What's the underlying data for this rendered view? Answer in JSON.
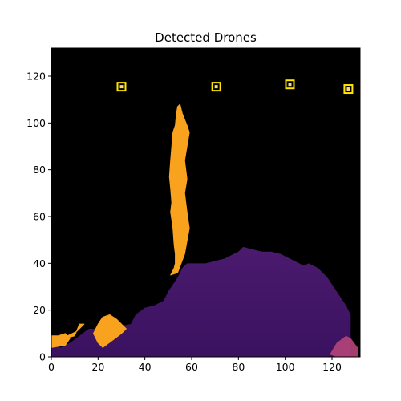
{
  "chart_data": {
    "type": "heatmap",
    "title": "Detected Drones",
    "xlabel": "",
    "ylabel": "",
    "xlim": [
      0,
      132
    ],
    "ylim": [
      0,
      132
    ],
    "x_ticks": [
      0,
      20,
      40,
      60,
      80,
      100,
      120
    ],
    "y_ticks": [
      0,
      20,
      40,
      60,
      80,
      100,
      120
    ],
    "grid": false,
    "colormap": "inferno",
    "colors": {
      "background": "#000000",
      "terrain": "#4b1a6e",
      "terrain_dark": "#3a1260",
      "terrain_warm": "#b5457a",
      "plume": "#f8a21e",
      "plume_light": "#fbd87a",
      "detection_box": "#ffe600"
    },
    "terrain_profile": {
      "x": [
        0,
        4,
        8,
        12,
        16,
        22,
        28,
        34,
        36,
        40,
        44,
        48,
        50,
        54,
        56,
        58,
        62,
        66,
        70,
        74,
        78,
        80,
        82,
        86,
        90,
        94,
        98,
        102,
        106,
        108,
        110,
        114,
        118,
        122,
        126,
        128,
        128
      ],
      "y": [
        6,
        4,
        6,
        9,
        12,
        12,
        13,
        14,
        18,
        21,
        22,
        24,
        28,
        34,
        38,
        40,
        40,
        40,
        41,
        42,
        44,
        45,
        47,
        46,
        45,
        45,
        44,
        42,
        40,
        39,
        40,
        38,
        34,
        28,
        22,
        18,
        10
      ]
    },
    "plume_regions": [
      {
        "name": "main-plume",
        "x": [
          51,
          54,
          57,
          59,
          58,
          57.5,
          57,
          58,
          57.5,
          57,
          58,
          59,
          58,
          56,
          55.5,
          55,
          54,
          53.5,
          53,
          52,
          51.5,
          51,
          50.5,
          51,
          51.5,
          51,
          52,
          52.5,
          53,
          53,
          52.5,
          51
        ],
        "y": [
          35,
          36,
          44,
          55,
          62,
          66,
          70,
          76,
          80,
          84,
          90,
          96,
          99,
          104,
          106,
          108,
          107,
          104,
          99,
          96,
          90,
          84,
          77,
          72,
          66,
          62,
          55,
          48,
          44,
          40,
          38,
          35
        ]
      },
      {
        "name": "plume-left-1",
        "x": [
          0,
          6,
          8,
          6,
          3,
          0
        ],
        "y": [
          4,
          5,
          8,
          10,
          9,
          9
        ]
      },
      {
        "name": "plume-left-2",
        "x": [
          6,
          10,
          12,
          14,
          11,
          7,
          6
        ],
        "y": [
          8,
          9,
          14,
          14,
          11,
          9,
          8
        ]
      },
      {
        "name": "plume-left-3",
        "x": [
          18,
          20,
          22,
          25,
          28,
          32,
          30,
          26,
          22,
          20,
          18
        ],
        "y": [
          10,
          14,
          17,
          18,
          16,
          12,
          10,
          7,
          4,
          6,
          10
        ]
      }
    ],
    "warm_region": {
      "x": [
        119,
        122,
        126,
        128,
        131,
        131,
        122,
        119
      ],
      "y": [
        1,
        6,
        9,
        8,
        4,
        0,
        0,
        1
      ]
    },
    "detections": [
      {
        "x": 30,
        "y": 115.5
      },
      {
        "x": 70.5,
        "y": 115.5
      },
      {
        "x": 102,
        "y": 116.5
      },
      {
        "x": 127,
        "y": 114.5
      }
    ]
  }
}
